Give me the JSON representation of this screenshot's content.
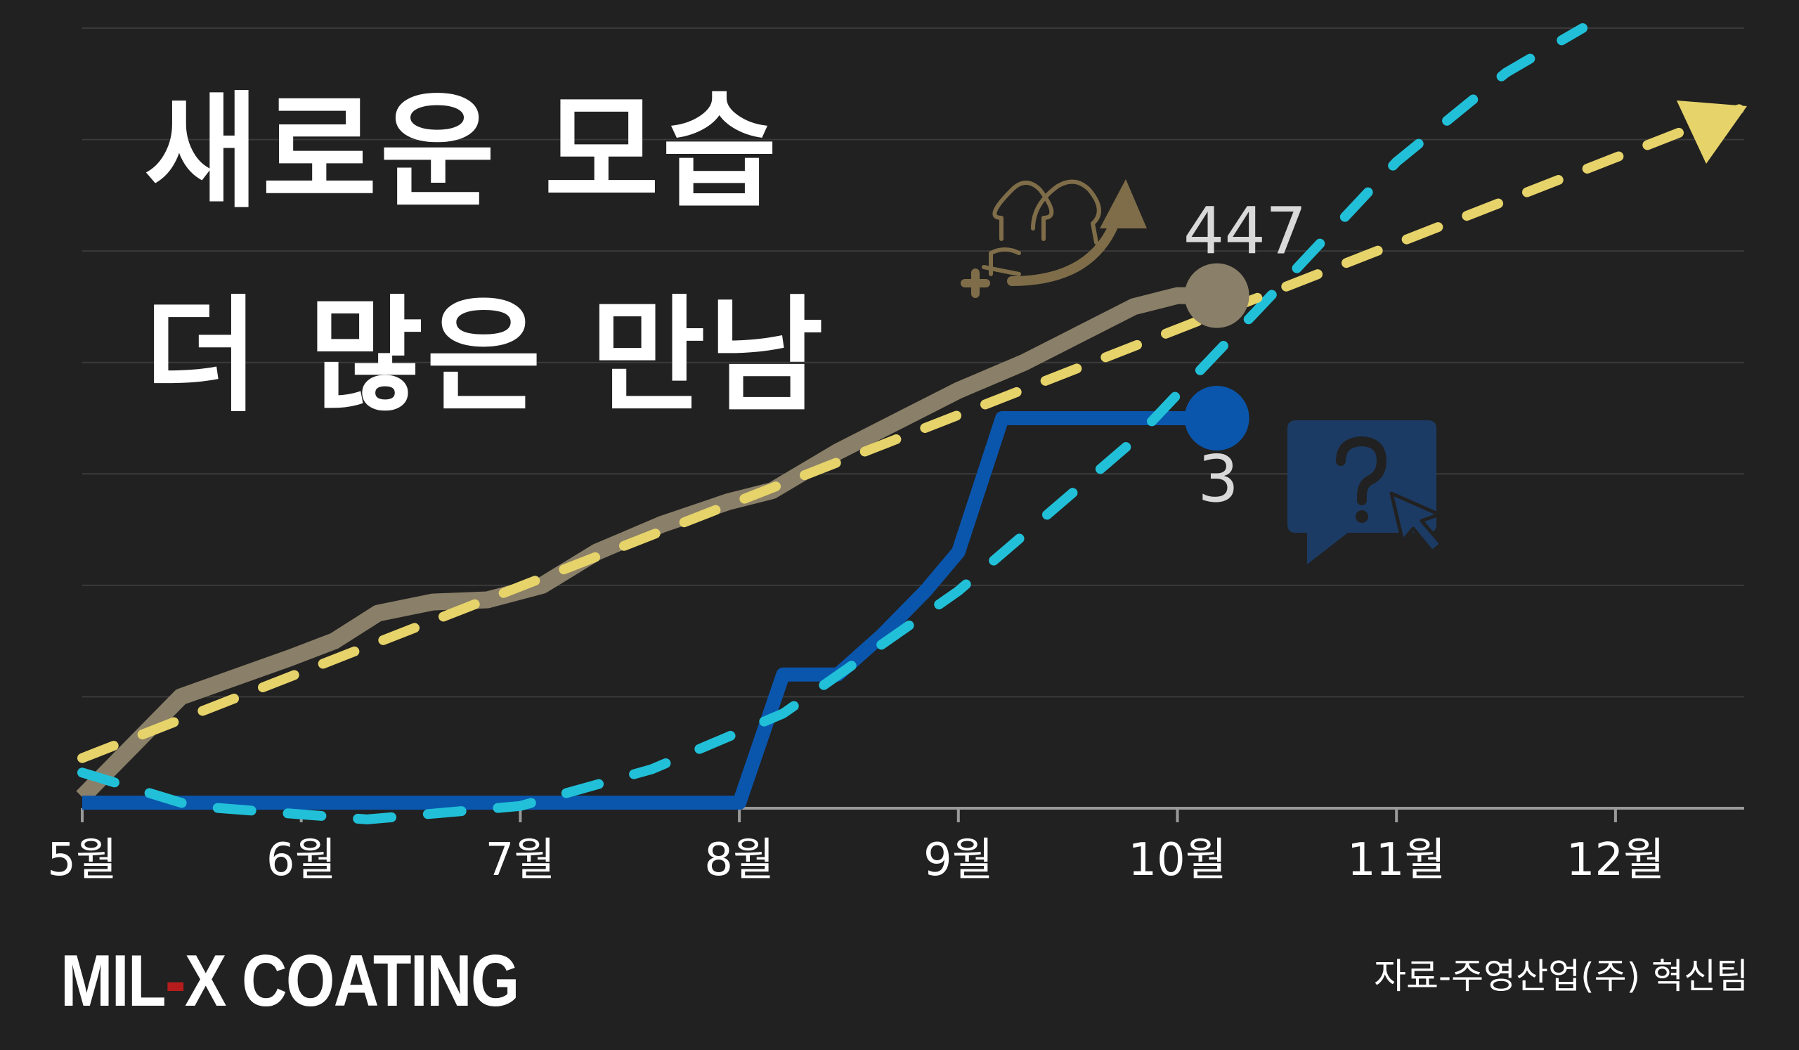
{
  "headline": {
    "line1": "새로운 모습",
    "line2": "더 많은 만남"
  },
  "brand": {
    "left": "MIL",
    "dash": "-",
    "right": "X COATING"
  },
  "source": "자료-주영산업(주) 혁신팀",
  "icons": {
    "users_icon": "users-growth-icon",
    "question_icon": "question-chat-icon"
  },
  "colors": {
    "background": "#212121",
    "gridline": "#3a3a3a",
    "members_line": "#8a7f68",
    "inquiries_line": "#0a56ad",
    "members_trend": "#e6d36a",
    "inquiries_trend": "#21c0d8",
    "users_icon": "#7e6d48",
    "question_icon": "#1c3b64",
    "axis_text": "#ffffff"
  },
  "chart_data": {
    "type": "line",
    "x_ticks": [
      "5월",
      "6월",
      "7월",
      "8월",
      "9월",
      "10월",
      "11월",
      "12월"
    ],
    "xlim": [
      0,
      7.6
    ],
    "ylim": [
      0,
      7
    ],
    "grid": true,
    "series": [
      {
        "role": "members",
        "style": "solid",
        "x": [
          0,
          0.45,
          0.95,
          1.15,
          1.35,
          1.6,
          1.85,
          2.1,
          2.35,
          2.65,
          2.95,
          3.15,
          3.45,
          3.75,
          4.0,
          4.3,
          4.55,
          4.8,
          5.0,
          5.18
        ],
        "y": [
          0.1,
          1.0,
          1.35,
          1.5,
          1.75,
          1.85,
          1.87,
          2.0,
          2.3,
          2.55,
          2.75,
          2.85,
          3.2,
          3.5,
          3.75,
          4.0,
          4.25,
          4.5,
          4.6,
          4.6
        ],
        "end_label": "447"
      },
      {
        "role": "inquiries",
        "style": "solid",
        "x": [
          0,
          1.0,
          2.0,
          2.95,
          3.0,
          3.2,
          3.45,
          3.65,
          3.85,
          4.0,
          4.2,
          5.18
        ],
        "y": [
          0.05,
          0.05,
          0.05,
          0.05,
          0.05,
          1.2,
          1.2,
          1.55,
          1.95,
          2.3,
          3.5,
          3.5
        ],
        "end_label": "3"
      },
      {
        "role": "members-trend",
        "style": "dashed",
        "x": [
          0,
          7.6
        ],
        "y": [
          0.45,
          6.3
        ]
      },
      {
        "role": "inquiries-trend",
        "style": "dashed",
        "x": [
          0,
          0.5,
          1.3,
          2.0,
          2.6,
          3.2,
          4.0,
          4.8,
          5.5,
          6.0,
          6.5,
          6.85
        ],
        "y": [
          0.32,
          0.02,
          -0.1,
          0.02,
          0.35,
          0.85,
          1.95,
          3.3,
          4.75,
          5.8,
          6.6,
          7.0
        ]
      }
    ]
  }
}
